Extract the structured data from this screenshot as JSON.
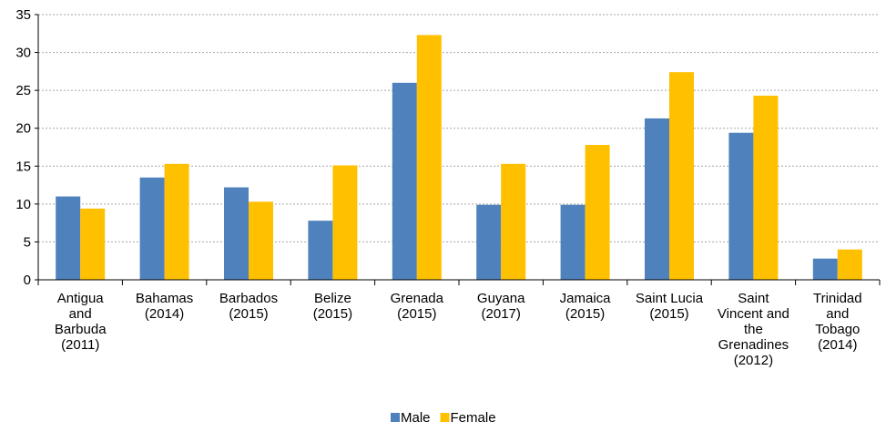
{
  "chart_data": {
    "type": "bar",
    "title": "",
    "xlabel": "",
    "ylabel": "",
    "ylim": [
      0,
      35
    ],
    "yticks": [
      0,
      5,
      10,
      15,
      20,
      25,
      30,
      35
    ],
    "grid": true,
    "legend_position": "bottom",
    "categories": [
      [
        "Antigua",
        "and",
        "Barbuda",
        "(2011)"
      ],
      [
        "Bahamas",
        "(2014)"
      ],
      [
        "Barbados",
        "(2015)"
      ],
      [
        "Belize",
        "(2015)"
      ],
      [
        "Grenada",
        "(2015)"
      ],
      [
        "Guyana",
        "(2017)"
      ],
      [
        "Jamaica",
        "(2015)"
      ],
      [
        "Saint Lucia",
        "(2015)"
      ],
      [
        "Saint",
        "Vincent and",
        "the",
        "Grenadines",
        "(2012)"
      ],
      [
        "Trinidad",
        "and",
        "Tobago",
        "(2014)"
      ]
    ],
    "series": [
      {
        "name": "Male",
        "color": "#4f81bd",
        "values": [
          11.0,
          13.5,
          12.2,
          7.8,
          26.0,
          9.9,
          9.9,
          21.3,
          19.4,
          2.8
        ]
      },
      {
        "name": "Female",
        "color": "#ffc000",
        "values": [
          9.4,
          15.3,
          10.3,
          15.1,
          32.3,
          15.3,
          17.8,
          27.4,
          24.3,
          4.0
        ]
      }
    ]
  }
}
